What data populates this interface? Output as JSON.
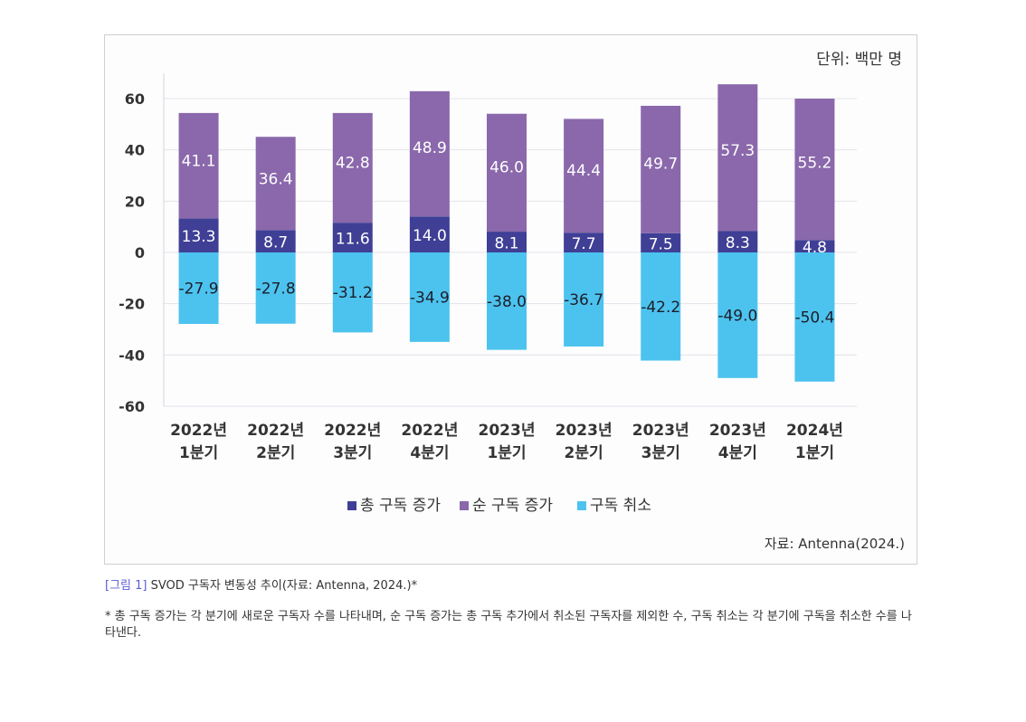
{
  "unit_label": "단위: 백만 명",
  "source_label": "자료: Antenna(2024.)",
  "caption": {
    "tag": "[그림 1]",
    "text": " SVOD 구독자 변동성 추이(자료: Antenna, 2024.)*"
  },
  "footnote": "* 총 구독 증가는 각 분기에 새로운 구독자 수를 나타내며, 순 구독 증가는 총 구독 추가에서 취소된 구독자를 제외한 수, 구독 취소는 각 분기에 구독을 취소한 수를 나타낸다.",
  "chart_data": {
    "type": "bar",
    "stacked": true,
    "title": "",
    "xlabel": "",
    "ylabel": "",
    "categories": [
      [
        "2022년",
        "1분기"
      ],
      [
        "2022년",
        "2분기"
      ],
      [
        "2022년",
        "3분기"
      ],
      [
        "2022년",
        "4분기"
      ],
      [
        "2023년",
        "1분기"
      ],
      [
        "2023년",
        "2분기"
      ],
      [
        "2023년",
        "3분기"
      ],
      [
        "2023년",
        "4분기"
      ],
      [
        "2024년",
        "1분기"
      ]
    ],
    "series": [
      {
        "name": "총 구독 증가",
        "color": "#3f3f96",
        "values": [
          13.3,
          8.7,
          11.6,
          14.0,
          8.1,
          7.7,
          7.5,
          8.3,
          4.8
        ],
        "labels": [
          "13.3",
          "8.7",
          "11.6",
          "14.0",
          "8.1",
          "7.7",
          "7.5",
          "8.3",
          "4.8"
        ]
      },
      {
        "name": "순 구독 증가",
        "color": "#8a68ab",
        "values": [
          41.1,
          36.4,
          42.8,
          48.9,
          46.0,
          44.4,
          49.7,
          57.3,
          55.2
        ],
        "labels": [
          "41.1",
          "36.4",
          "42.8",
          "48.9",
          "46.0",
          "44.4",
          "49.7",
          "57.3",
          "55.2"
        ]
      },
      {
        "name": "구독 취소",
        "color": "#4cc3ee",
        "values": [
          -27.9,
          -27.8,
          -31.2,
          -34.9,
          -38.0,
          -36.7,
          -42.2,
          -49.0,
          -50.4
        ],
        "labels": [
          "-27.9",
          "-27.8",
          "-31.2",
          "-34.9",
          "-38.0",
          "-36.7",
          "-42.2",
          "-49.0",
          "-50.4"
        ]
      }
    ],
    "ylim": [
      -60,
      60
    ],
    "yticks": [
      60,
      40,
      20,
      0,
      -20,
      -40,
      -60
    ],
    "grid": true,
    "legend_position": "bottom"
  }
}
